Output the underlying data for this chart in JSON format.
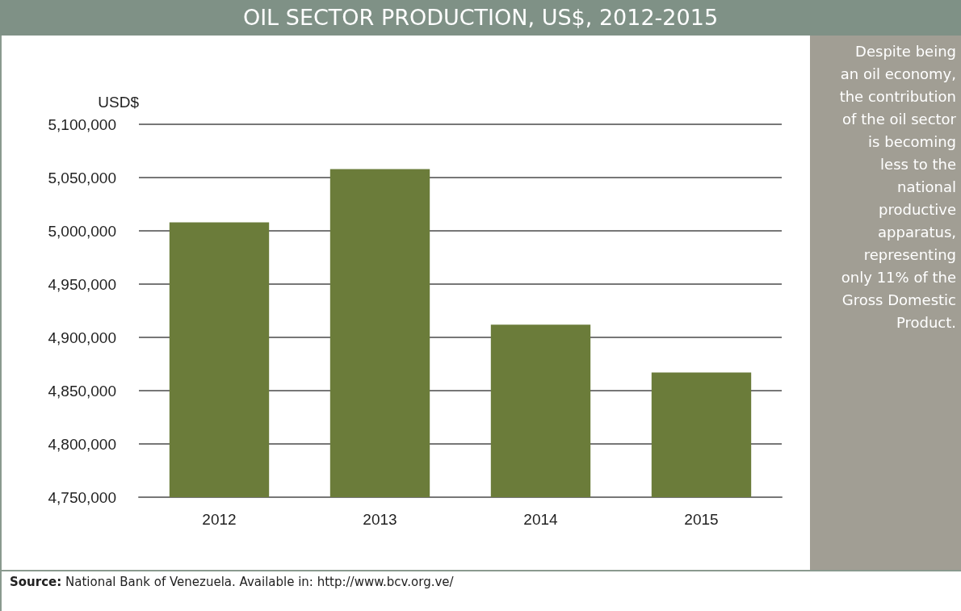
{
  "chart_data": {
    "type": "bar",
    "title": "OIL SECTOR PRODUCTION, US$, 2012-2015",
    "ylabel": "USD$",
    "categories": [
      "2012",
      "2013",
      "2014",
      "2015"
    ],
    "values": [
      5008000,
      5058000,
      4912000,
      4867000
    ],
    "color": "#6b7c3a",
    "ylim": [
      4750000,
      5100000
    ],
    "yticks": [
      {
        "value": 4750000,
        "label": "4,750,000"
      },
      {
        "value": 4800000,
        "label": "4,800,000"
      },
      {
        "value": 4850000,
        "label": "4,850,000"
      },
      {
        "value": 4900000,
        "label": "4,900,000"
      },
      {
        "value": 4950000,
        "label": "4,950,000"
      },
      {
        "value": 5000000,
        "label": "5,000,000"
      },
      {
        "value": 5050000,
        "label": "5,050,000"
      },
      {
        "value": 5100000,
        "label": "5,100,000"
      }
    ],
    "grid": "y",
    "annotations": [
      "Despite being an oil economy, the contribution of the oil sector is becoming less to the national productive apparatus, representing only 11% of the Gross Domestic Product.",
      "Source: National Bank of Venezuela. Available in: http://www.bcv.org.ve/"
    ]
  }
}
